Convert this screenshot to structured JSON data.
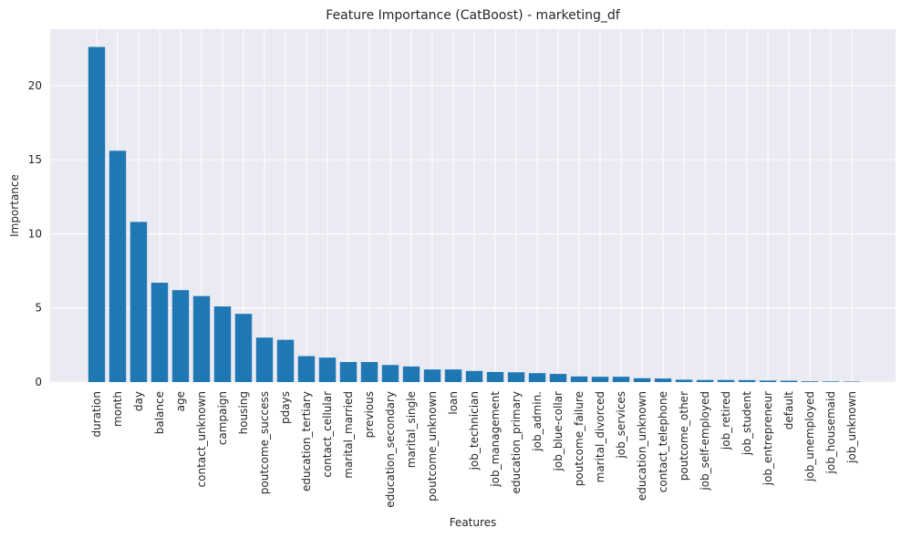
{
  "chart_data": {
    "type": "bar",
    "title": "Feature Importance (CatBoost) - marketing_df",
    "xlabel": "Features",
    "ylabel": "Importance",
    "ylim": [
      0,
      23.8
    ],
    "yticks": [
      0,
      5,
      10,
      15,
      20
    ],
    "grid": true,
    "bar_color": "#1f77b4",
    "background_color": "#eaeaf2",
    "grid_color": "#ffffff",
    "categories": [
      "duration",
      "month",
      "day",
      "balance",
      "age",
      "contact_unknown",
      "campaign",
      "housing",
      "poutcome_success",
      "pdays",
      "education_tertiary",
      "contact_cellular",
      "marital_married",
      "previous",
      "education_secondary",
      "marital_single",
      "poutcome_unknown",
      "loan",
      "job_technician",
      "job_management",
      "education_primary",
      "job_admin.",
      "job_blue-collar",
      "poutcome_failure",
      "marital_divorced",
      "job_services",
      "education_unknown",
      "contact_telephone",
      "poutcome_other",
      "job_self-employed",
      "job_retired",
      "job_student",
      "job_entrepreneur",
      "default",
      "job_unemployed",
      "job_housemaid",
      "job_unknown"
    ],
    "values": [
      22.6,
      15.6,
      10.8,
      6.7,
      6.2,
      5.8,
      5.1,
      4.6,
      3.0,
      2.85,
      1.75,
      1.65,
      1.35,
      1.35,
      1.15,
      1.05,
      0.85,
      0.85,
      0.75,
      0.68,
      0.66,
      0.6,
      0.55,
      0.38,
      0.36,
      0.36,
      0.26,
      0.24,
      0.16,
      0.14,
      0.14,
      0.13,
      0.1,
      0.09,
      0.05,
      0.04,
      0.03
    ]
  }
}
